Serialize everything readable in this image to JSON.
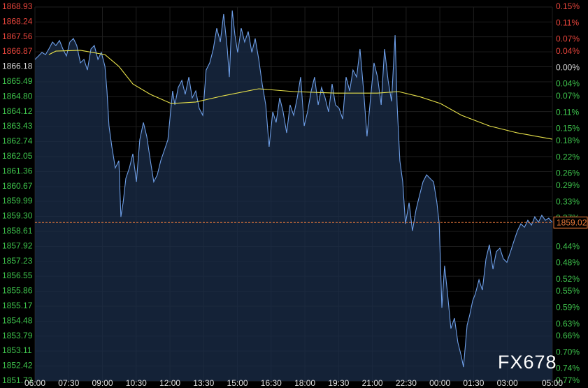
{
  "chart_data": {
    "type": "line",
    "background": "#000000",
    "grid": true,
    "grid_color": "#1e1e1e",
    "up_color": "#e8453c",
    "down_color": "#3ec24c",
    "flat_color": "#d8d8d8",
    "fill_color": "#1b2d4a",
    "xlim": [
      0,
      23
    ],
    "xticks": [
      {
        "value": 0,
        "label": "06:00"
      },
      {
        "value": 1.5,
        "label": "07:30"
      },
      {
        "value": 3,
        "label": "09:00"
      },
      {
        "value": 4.5,
        "label": "10:30"
      },
      {
        "value": 6,
        "label": "12:00"
      },
      {
        "value": 7.5,
        "label": "13:30"
      },
      {
        "value": 9,
        "label": "15:00"
      },
      {
        "value": 10.5,
        "label": "16:30"
      },
      {
        "value": 12,
        "label": "18:00"
      },
      {
        "value": 13.5,
        "label": "19:30"
      },
      {
        "value": 15,
        "label": "21:00"
      },
      {
        "value": 16.5,
        "label": "22:30"
      },
      {
        "value": 18,
        "label": "00:00"
      },
      {
        "value": 19.5,
        "label": "01:30"
      },
      {
        "value": 21,
        "label": "03:00"
      },
      {
        "value": 23,
        "label": "05:00"
      }
    ],
    "ylim": [
      1851.73,
      1868.93
    ],
    "yticks": [
      {
        "value": 1868.93,
        "label": "1868.93"
      },
      {
        "value": 1868.24,
        "label": "1868.24"
      },
      {
        "value": 1867.56,
        "label": "1867.56"
      },
      {
        "value": 1866.87,
        "label": "1866.87"
      },
      {
        "value": 1866.18,
        "label": "1866.18"
      },
      {
        "value": 1865.49,
        "label": "1865.49"
      },
      {
        "value": 1864.8,
        "label": "1864.80"
      },
      {
        "value": 1864.12,
        "label": "1864.12"
      },
      {
        "value": 1863.43,
        "label": "1863.43"
      },
      {
        "value": 1862.74,
        "label": "1862.74"
      },
      {
        "value": 1862.05,
        "label": "1862.05"
      },
      {
        "value": 1861.36,
        "label": "1861.36"
      },
      {
        "value": 1860.67,
        "label": "1860.67"
      },
      {
        "value": 1859.99,
        "label": "1859.99"
      },
      {
        "value": 1859.3,
        "label": "1859.30"
      },
      {
        "value": 1858.61,
        "label": "1858.61"
      },
      {
        "value": 1857.92,
        "label": "1857.92"
      },
      {
        "value": 1857.23,
        "label": "1857.23"
      },
      {
        "value": 1856.55,
        "label": "1856.55"
      },
      {
        "value": 1855.86,
        "label": "1855.86"
      },
      {
        "value": 1855.17,
        "label": "1855.17"
      },
      {
        "value": 1854.48,
        "label": "1854.48"
      },
      {
        "value": 1853.79,
        "label": "1853.79"
      },
      {
        "value": 1853.11,
        "label": "1853.11"
      },
      {
        "value": 1852.42,
        "label": "1852.42"
      },
      {
        "value": 1851.73,
        "label": "1851.73"
      }
    ],
    "y2lim": [
      -0.77,
      0.15
    ],
    "y2ticks": [
      {
        "value": 0.15,
        "label": "0.15%"
      },
      {
        "value": 0.11,
        "label": "0.11%"
      },
      {
        "value": 0.07,
        "label": "0.07%"
      },
      {
        "value": 0.04,
        "label": "0.04%"
      },
      {
        "value": 0,
        "label": "0.00%"
      },
      {
        "value": -0.04,
        "label": "0.04%"
      },
      {
        "value": -0.07,
        "label": "0.07%"
      },
      {
        "value": -0.11,
        "label": "0.11%"
      },
      {
        "value": -0.15,
        "label": "0.15%"
      },
      {
        "value": -0.18,
        "label": "0.18%"
      },
      {
        "value": -0.22,
        "label": "0.22%"
      },
      {
        "value": -0.26,
        "label": "0.26%"
      },
      {
        "value": -0.29,
        "label": "0.29%"
      },
      {
        "value": -0.33,
        "label": "0.33%"
      },
      {
        "value": -0.37,
        "label": "0.37%"
      },
      {
        "value": -0.44,
        "label": "0.44%"
      },
      {
        "value": -0.48,
        "label": "0.48%"
      },
      {
        "value": -0.52,
        "label": "0.52%"
      },
      {
        "value": -0.55,
        "label": "0.55%"
      },
      {
        "value": -0.59,
        "label": "0.59%"
      },
      {
        "value": -0.63,
        "label": "0.63%"
      },
      {
        "value": -0.66,
        "label": "0.66%"
      },
      {
        "value": -0.7,
        "label": "0.70%"
      },
      {
        "value": -0.74,
        "label": "0.74%"
      },
      {
        "value": -0.77,
        "label": "0.77%"
      }
    ],
    "last_price": 1859.02,
    "last_price_color": "#e8793a",
    "watermark": "FX678",
    "series": [
      {
        "color": "#6e9fe8",
        "x": [
          0,
          0.16,
          0.31,
          0.47,
          0.62,
          0.78,
          0.93,
          1.09,
          1.24,
          1.4,
          1.55,
          1.71,
          1.86,
          2.02,
          2.18,
          2.33,
          2.49,
          2.64,
          2.8,
          2.95,
          3.11,
          3.2,
          3.29,
          3.42,
          3.57,
          3.73,
          3.82,
          3.92,
          4.04,
          4.2,
          4.35,
          4.51,
          4.66,
          4.82,
          4.97,
          5.13,
          5.28,
          5.44,
          5.59,
          5.75,
          5.91,
          6,
          6.12,
          6.22,
          6.37,
          6.53,
          6.68,
          6.84,
          6.99,
          7.15,
          7.3,
          7.46,
          7.61,
          7.77,
          7.93,
          8.08,
          8.24,
          8.39,
          8.55,
          8.64,
          8.77,
          8.89,
          9.01,
          9.17,
          9.32,
          9.48,
          9.64,
          9.79,
          9.95,
          10.1,
          10.26,
          10.41,
          10.57,
          10.72,
          10.88,
          11.03,
          11.19,
          11.34,
          11.5,
          11.66,
          11.81,
          11.97,
          12.12,
          12.28,
          12.43,
          12.59,
          12.74,
          12.9,
          13.05,
          13.21,
          13.36,
          13.52,
          13.68,
          13.83,
          13.99,
          14.14,
          14.3,
          14.45,
          14.61,
          14.76,
          14.92,
          15.07,
          15.23,
          15.39,
          15.54,
          15.7,
          15.85,
          16.01,
          16.1,
          16.22,
          16.35,
          16.47,
          16.63,
          16.78,
          16.94,
          17.09,
          17.25,
          17.41,
          17.56,
          17.72,
          17.87,
          17.97,
          18.09,
          18.21,
          18.34,
          18.49,
          18.65,
          18.8,
          18.96,
          19.05,
          19.21,
          19.33,
          19.46,
          19.58,
          19.74,
          19.89,
          20.05,
          20.2,
          20.36,
          20.51,
          20.67,
          20.82,
          20.98,
          21.14,
          21.29,
          21.45,
          21.6,
          21.76,
          21.91,
          22.07,
          22.22,
          22.38,
          22.53,
          22.69,
          22.84,
          23
        ],
        "values": [
          1866.52,
          1866.68,
          1866.84,
          1866.74,
          1867,
          1867.32,
          1867.16,
          1867.39,
          1867,
          1866.68,
          1867.32,
          1867.48,
          1867.16,
          1866.36,
          1866.52,
          1866.03,
          1867,
          1867.16,
          1866.52,
          1866.84,
          1866.2,
          1865.07,
          1863.46,
          1862.5,
          1861.53,
          1861.86,
          1859.28,
          1859.93,
          1861.05,
          1861.53,
          1862.18,
          1860.89,
          1862.82,
          1863.62,
          1862.98,
          1861.86,
          1860.89,
          1861.21,
          1861.86,
          1862.34,
          1862.82,
          1863.78,
          1865.07,
          1864.43,
          1865.23,
          1865.55,
          1864.91,
          1865.71,
          1864.75,
          1865.07,
          1864.27,
          1863.95,
          1866.03,
          1866.36,
          1867,
          1867.96,
          1867.32,
          1868.61,
          1867,
          1865.71,
          1868.77,
          1867.64,
          1866.84,
          1867.96,
          1867.32,
          1867.8,
          1866.84,
          1867.48,
          1866.52,
          1865.39,
          1864.43,
          1862.5,
          1864.11,
          1863.62,
          1864.75,
          1864.11,
          1863.14,
          1864.43,
          1863.95,
          1864.75,
          1865.71,
          1863.46,
          1864.11,
          1865.07,
          1865.71,
          1864.43,
          1865.23,
          1864.75,
          1864.11,
          1865.39,
          1864.43,
          1864.27,
          1863.78,
          1865.71,
          1865.07,
          1866.03,
          1865.71,
          1867,
          1865.07,
          1862.98,
          1864.75,
          1866.36,
          1865.71,
          1864.43,
          1867,
          1865.55,
          1864.59,
          1867.64,
          1864.43,
          1861.86,
          1860.89,
          1858.96,
          1859.93,
          1858.64,
          1859.6,
          1860.25,
          1860.89,
          1861.21,
          1861.05,
          1860.89,
          1859.93,
          1858.96,
          1855.1,
          1857.03,
          1855.75,
          1854.14,
          1854.62,
          1853.5,
          1852.85,
          1852.37,
          1854.3,
          1854.78,
          1855.43,
          1855.75,
          1856.39,
          1855.91,
          1857.35,
          1858,
          1856.87,
          1857.68,
          1857.84,
          1857.35,
          1857.19,
          1857.68,
          1858.16,
          1858.64,
          1858.96,
          1858.8,
          1859.12,
          1858.9,
          1859.28,
          1859.03,
          1859.35,
          1859.12,
          1859.22,
          1859.02
        ]
      },
      {
        "color": "#e8e24a",
        "x": [
          0.62,
          0.93,
          2.02,
          3.11,
          3.73,
          4.35,
          5.13,
          6.06,
          7.15,
          8.39,
          9.95,
          11.5,
          13.36,
          15.23,
          16.16,
          17.09,
          18.03,
          18.96,
          20.2,
          21.45,
          23
        ],
        "values": [
          1866.74,
          1866.9,
          1866.94,
          1866.74,
          1866.2,
          1865.39,
          1864.91,
          1864.49,
          1864.56,
          1864.85,
          1865.17,
          1865.04,
          1864.97,
          1864.97,
          1865.04,
          1864.81,
          1864.49,
          1863.95,
          1863.46,
          1863.14,
          1862.85
        ]
      }
    ]
  }
}
